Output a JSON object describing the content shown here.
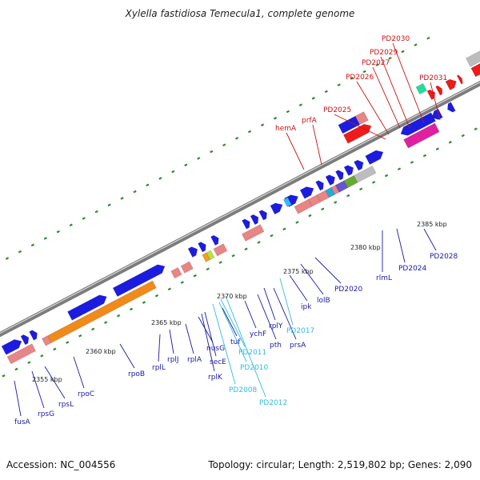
{
  "title": "Xylella fastidiosa Temecula1, complete genome",
  "footer": {
    "accession": "Accession: NC_004556",
    "summary": "Topology: circular; Length: 2,519,802 bp; Genes: 2,090"
  },
  "ruler": [
    {
      "label": "2355 kbp",
      "pos": 2355
    },
    {
      "label": "2360 kbp",
      "pos": 2360
    },
    {
      "label": "2365 kbp",
      "pos": 2365
    },
    {
      "label": "2370 kbp",
      "pos": 2370
    },
    {
      "label": "2375 kbp",
      "pos": 2375
    },
    {
      "label": "2380 kbp",
      "pos": 2380
    },
    {
      "label": "2385 kbp",
      "pos": 2385
    }
  ],
  "labels_below": [
    {
      "text": "fusA",
      "color": "#1a1aa6"
    },
    {
      "text": "rpsG",
      "color": "#1a1aa6"
    },
    {
      "text": "rpsL",
      "color": "#1a1aa6"
    },
    {
      "text": "rpoC",
      "color": "#1a1aa6"
    },
    {
      "text": "rpoB",
      "color": "#1a1aa6"
    },
    {
      "text": "rplL",
      "color": "#1a1aa6"
    },
    {
      "text": "rplJ",
      "color": "#1a1aa6"
    },
    {
      "text": "rplA",
      "color": "#1a1aa6"
    },
    {
      "text": "rplK",
      "color": "#1a1aa6"
    },
    {
      "text": "nusG",
      "color": "#1a1aa6"
    },
    {
      "text": "secE",
      "color": "#1a1aa6"
    },
    {
      "text": "tuf",
      "color": "#1a1aa6"
    },
    {
      "text": "PD2008",
      "color": "#33bbdd"
    },
    {
      "text": "PD2010",
      "color": "#33bbdd"
    },
    {
      "text": "PD2011",
      "color": "#33bbdd"
    },
    {
      "text": "PD2012",
      "color": "#33bbdd"
    },
    {
      "text": "ychF",
      "color": "#1a1aa6"
    },
    {
      "text": "pth",
      "color": "#1a1aa6"
    },
    {
      "text": "rplY",
      "color": "#1a1aa6"
    },
    {
      "text": "prsA",
      "color": "#1a1aa6"
    },
    {
      "text": "PD2017",
      "color": "#33bbdd"
    },
    {
      "text": "ipk",
      "color": "#1a1aa6"
    },
    {
      "text": "lolB",
      "color": "#1a1aa6"
    },
    {
      "text": "PD2020",
      "color": "#1a1aa6"
    },
    {
      "text": "rlmL",
      "color": "#1a1aa6"
    },
    {
      "text": "PD2024",
      "color": "#1a1aa6"
    },
    {
      "text": "PD2028",
      "color": "#1a1aa6"
    }
  ],
  "labels_above": [
    {
      "text": "hemA",
      "color": "#cc1111"
    },
    {
      "text": "prfA",
      "color": "#cc1111"
    },
    {
      "text": "PD2025",
      "color": "#cc1111"
    },
    {
      "text": "PD2026",
      "color": "#cc1111"
    },
    {
      "text": "PD2027",
      "color": "#cc1111"
    },
    {
      "text": "PD2029",
      "color": "#cc1111"
    },
    {
      "text": "PD2030",
      "color": "#cc1111"
    },
    {
      "text": "PD2031",
      "color": "#cc1111"
    }
  ]
}
